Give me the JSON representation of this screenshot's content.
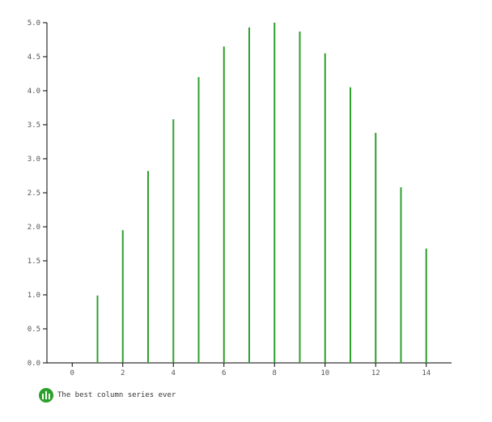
{
  "chart_data": {
    "type": "bar",
    "x": [
      1,
      2,
      3,
      4,
      5,
      6,
      7,
      8,
      9,
      10,
      11,
      12,
      13,
      14
    ],
    "values": [
      0.99,
      1.95,
      2.82,
      3.58,
      4.2,
      4.65,
      4.93,
      5.0,
      4.87,
      4.55,
      4.05,
      3.38,
      2.58,
      1.68
    ],
    "xlim": [
      -1,
      15
    ],
    "ylim": [
      0,
      5
    ],
    "x_ticks": [
      "0",
      "2",
      "4",
      "6",
      "8",
      "10",
      "12",
      "14"
    ],
    "y_ticks": [
      "0.0",
      "0.5",
      "1.0",
      "1.5",
      "2.0",
      "2.5",
      "3.0",
      "3.5",
      "4.0",
      "4.5",
      "5.0"
    ],
    "series": [
      {
        "name": "The best column series ever",
        "color": "#2ca02c"
      }
    ],
    "grid": false,
    "legend_position": "bottom-left"
  },
  "legend": {
    "label": "The best column series ever",
    "icon": "column-series-icon"
  }
}
